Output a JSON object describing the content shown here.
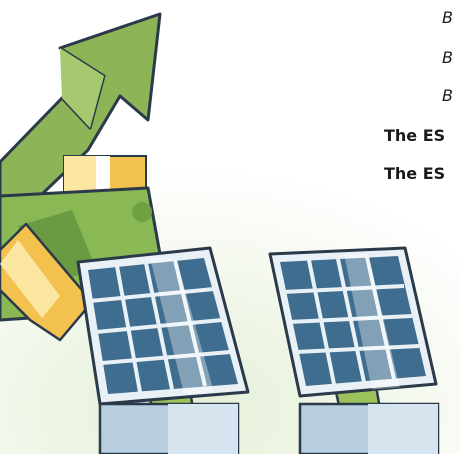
{
  "illustration": {
    "description_icon": "solar-panels-money-growth-illustration",
    "colors": {
      "background_glow": "#eef5e4",
      "arrow_green": "#8db558",
      "arrow_outline": "#2b3a4a",
      "money_green": "#8ab855",
      "money_dark": "#5d8f3a",
      "coin_yellow": "#f2c14e",
      "coin_cream": "#fbe6a2",
      "panel_blue": "#3f6d8f",
      "panel_light": "#a9c7dc",
      "panel_frame": "#e9f1f6",
      "stand_green": "#9cc25c",
      "base_blue": "#b8cfe0"
    }
  },
  "text_lines": [
    "B",
    "B",
    "B",
    "The ES",
    "The ES"
  ]
}
